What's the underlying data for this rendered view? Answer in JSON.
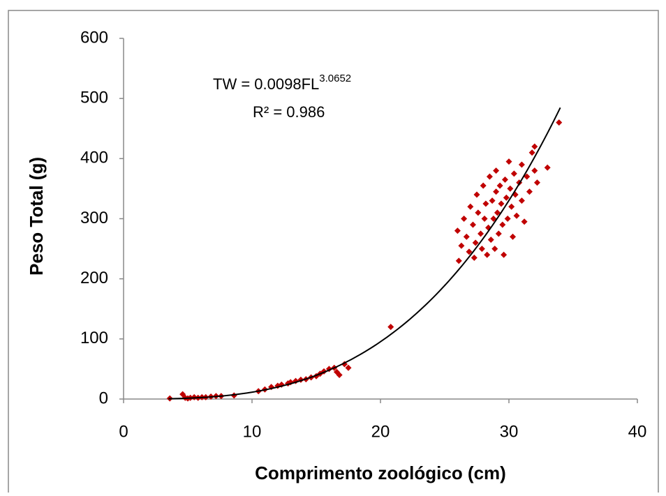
{
  "chart_data": {
    "type": "scatter",
    "x_title": "Comprimento zoológico (cm)",
    "y_title": "Peso Total (g)",
    "equation": "TW = 0.0098FL",
    "equation_exponent": "3.0652",
    "r_squared": "R² = 0.986",
    "color": "#c00000",
    "xlim": [
      0,
      40
    ],
    "xticks": [
      0,
      10,
      20,
      30,
      40
    ],
    "ylim": [
      0,
      600
    ],
    "yticks": [
      0,
      100,
      200,
      300,
      400,
      500,
      600
    ],
    "grid": false,
    "trendline": {
      "coefficient": 0.0098,
      "exponent": 3.0652,
      "x_range": [
        3.5,
        34
      ],
      "color": "#000000"
    },
    "x": [
      3.6,
      4.6,
      4.8,
      5.0,
      5.2,
      5.5,
      5.8,
      6.1,
      6.4,
      6.8,
      7.2,
      7.6,
      8.6,
      10.5,
      11,
      11.5,
      12,
      12.3,
      12.8,
      13,
      13.4,
      13.8,
      14.2,
      14.6,
      15,
      15.3,
      15.6,
      16,
      16.4,
      16.6,
      16.8,
      17.2,
      17.5,
      20.8,
      26,
      26.1,
      26.3,
      26.5,
      26.7,
      26.9,
      27,
      27.2,
      27.3,
      27.4,
      27.5,
      27.6,
      27.8,
      27.9,
      28,
      28.1,
      28.2,
      28.3,
      28.4,
      28.5,
      28.6,
      28.7,
      28.8,
      28.9,
      29,
      29,
      29.1,
      29.2,
      29.3,
      29.4,
      29.5,
      29.6,
      29.7,
      29.8,
      29.9,
      30,
      30.1,
      30.2,
      30.3,
      30.4,
      30.5,
      30.6,
      30.8,
      31,
      31,
      31.2,
      31.4,
      31.6,
      31.8,
      32,
      32,
      32.2,
      33,
      33.9
    ],
    "values": [
      1,
      8,
      2,
      1,
      2,
      3,
      2,
      3,
      3,
      4,
      5,
      5,
      6,
      13,
      16,
      20,
      22,
      24,
      26,
      28,
      30,
      32,
      33,
      36,
      38,
      42,
      46,
      50,
      52,
      45,
      40,
      58,
      52,
      120,
      280,
      230,
      255,
      300,
      270,
      245,
      320,
      290,
      235,
      260,
      340,
      310,
      275,
      250,
      355,
      300,
      325,
      240,
      285,
      370,
      265,
      330,
      300,
      250,
      380,
      345,
      310,
      275,
      355,
      325,
      290,
      240,
      365,
      335,
      300,
      395,
      350,
      320,
      270,
      375,
      340,
      305,
      360,
      390,
      330,
      295,
      370,
      345,
      410,
      420,
      380,
      360,
      385,
      460
    ]
  }
}
